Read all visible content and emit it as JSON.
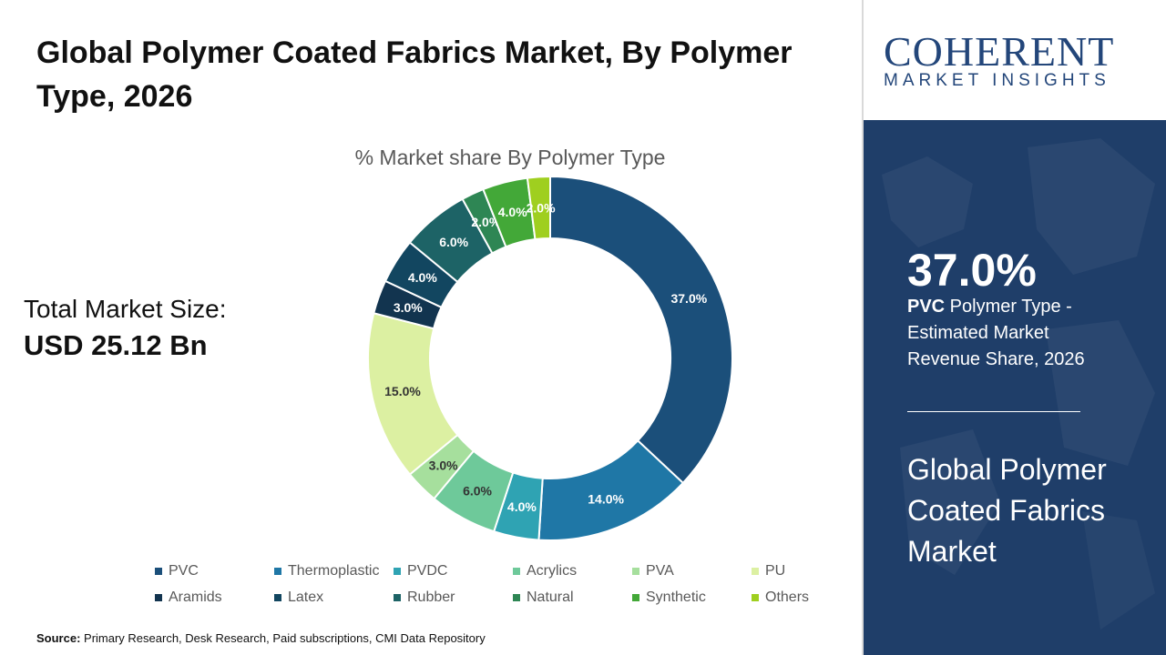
{
  "title": "Global Polymer Coated Fabrics Market, By Polymer Type, 2026",
  "total_market_label": "Total Market Size:",
  "total_market_value": "USD 25.12 Bn",
  "source_label": "Source:",
  "source_text": " Primary Research, Desk Research, Paid subscriptions, CMI Data Repository",
  "logo": {
    "main": "COHERENT",
    "sub": "MARKET INSIGHTS"
  },
  "highlight": {
    "value": "37.0%",
    "segment": "PVC",
    "description": " Polymer Type - Estimated Market Revenue Share, 2026",
    "market_name": "Global Polymer Coated Fabrics Market"
  },
  "colors": {
    "panel": "#1f3e69",
    "logo": "#23467a"
  },
  "chart_data": {
    "type": "pie",
    "donut": true,
    "title": "% Market share By Polymer Type",
    "legend_position": "bottom",
    "categories": [
      "PVC",
      "Thermoplastic",
      "PVDC",
      "Acrylics",
      "PVA",
      "PU",
      "Aramids",
      "Latex",
      "Rubber",
      "Natural",
      "Synthetic",
      "Others"
    ],
    "values": [
      37.0,
      14.0,
      4.0,
      6.0,
      3.0,
      15.0,
      3.0,
      4.0,
      6.0,
      2.0,
      4.0,
      2.0
    ],
    "labels": [
      "37.0%",
      "14.0%",
      "4.0%",
      "6.0%",
      "3.0%",
      "15.0%",
      "3.0%",
      "4.0%",
      "6.0%",
      "2.0%",
      "4.0%",
      "2.0%"
    ],
    "colors": [
      "#1b4f7a",
      "#1f77a6",
      "#2fa3b3",
      "#6ec99a",
      "#a6df9d",
      "#dcf0a2",
      "#12344f",
      "#124660",
      "#1d6366",
      "#2e8654",
      "#43a838",
      "#9fcf1f"
    ]
  }
}
